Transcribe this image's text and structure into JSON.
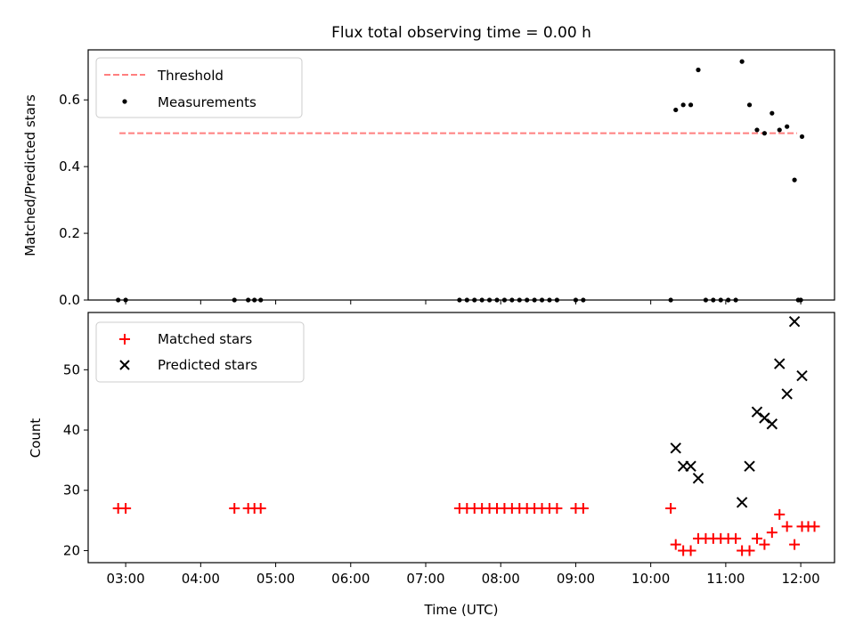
{
  "chart_data": [
    {
      "type": "scatter",
      "title": "Flux total observing time = 0.00 h",
      "xlabel": "",
      "ylabel": "Matched/Predicted stars",
      "xlim": [
        "02:30",
        "12:27"
      ],
      "ylim": [
        0,
        0.75
      ],
      "xticks": [
        "03:00",
        "04:00",
        "05:00",
        "06:00",
        "07:00",
        "08:00",
        "09:00",
        "10:00",
        "11:00",
        "12:00"
      ],
      "yticks": [
        "0.0",
        "0.2",
        "0.4",
        "0.6"
      ],
      "ytick_values": [
        0,
        0.2,
        0.4,
        0.6
      ],
      "show_xtick_labels": false,
      "grid": false,
      "legend_position": "upper left",
      "threshold": {
        "name": "Threshold",
        "value": 0.5,
        "x": [
          "02:55",
          "11:57"
        ],
        "color": "#ff7f7f",
        "style": "dashed"
      },
      "series": [
        {
          "name": "Measurements",
          "color": "#000000",
          "marker": "dot",
          "points": [
            [
              "02:54",
              0
            ],
            [
              "03:00",
              0
            ],
            [
              "04:27",
              0
            ],
            [
              "04:38",
              0
            ],
            [
              "04:43",
              0
            ],
            [
              "04:48",
              0
            ],
            [
              "07:27",
              0
            ],
            [
              "07:33",
              0
            ],
            [
              "07:39",
              0
            ],
            [
              "07:45",
              0
            ],
            [
              "07:51",
              0
            ],
            [
              "07:57",
              0
            ],
            [
              "08:03",
              0
            ],
            [
              "08:09",
              0
            ],
            [
              "08:15",
              0
            ],
            [
              "08:21",
              0
            ],
            [
              "08:27",
              0
            ],
            [
              "08:33",
              0
            ],
            [
              "08:39",
              0
            ],
            [
              "08:45",
              0
            ],
            [
              "09:00",
              0
            ],
            [
              "09:06",
              0
            ],
            [
              "10:16",
              0
            ],
            [
              "10:20",
              0.57
            ],
            [
              "10:26",
              0.585
            ],
            [
              "10:32",
              0.585
            ],
            [
              "10:38",
              0.69
            ],
            [
              "10:44",
              0
            ],
            [
              "10:50",
              0
            ],
            [
              "10:56",
              0
            ],
            [
              "11:02",
              0
            ],
            [
              "11:08",
              0
            ],
            [
              "11:13",
              0.715
            ],
            [
              "11:19",
              0.585
            ],
            [
              "11:25",
              0.51
            ],
            [
              "11:31",
              0.5
            ],
            [
              "11:37",
              0.56
            ],
            [
              "11:43",
              0.51
            ],
            [
              "11:49",
              0.52
            ],
            [
              "11:55",
              0.36
            ],
            [
              "12:01",
              0.49
            ],
            [
              "11:58",
              0
            ],
            [
              "12:00",
              0
            ]
          ]
        }
      ]
    },
    {
      "type": "scatter",
      "title": "",
      "xlabel": "Time (UTC)",
      "ylabel": "Count",
      "xlim": [
        "02:30",
        "12:27"
      ],
      "ylim": [
        18,
        59.5
      ],
      "xticks": [
        "03:00",
        "04:00",
        "05:00",
        "06:00",
        "07:00",
        "08:00",
        "09:00",
        "10:00",
        "11:00",
        "12:00"
      ],
      "yticks": [
        "20",
        "30",
        "40",
        "50"
      ],
      "ytick_values": [
        20,
        30,
        40,
        50
      ],
      "grid": false,
      "legend_position": "upper left",
      "series": [
        {
          "name": "Matched stars",
          "color": "#ff0000",
          "marker": "plus",
          "points": [
            [
              "02:54",
              27
            ],
            [
              "03:00",
              27
            ],
            [
              "04:27",
              27
            ],
            [
              "04:38",
              27
            ],
            [
              "04:43",
              27
            ],
            [
              "04:48",
              27
            ],
            [
              "07:27",
              27
            ],
            [
              "07:33",
              27
            ],
            [
              "07:39",
              27
            ],
            [
              "07:45",
              27
            ],
            [
              "07:51",
              27
            ],
            [
              "07:57",
              27
            ],
            [
              "08:03",
              27
            ],
            [
              "08:09",
              27
            ],
            [
              "08:15",
              27
            ],
            [
              "08:21",
              27
            ],
            [
              "08:27",
              27
            ],
            [
              "08:33",
              27
            ],
            [
              "08:39",
              27
            ],
            [
              "08:45",
              27
            ],
            [
              "09:00",
              27
            ],
            [
              "09:06",
              27
            ],
            [
              "10:16",
              27
            ],
            [
              "10:20",
              21
            ],
            [
              "10:26",
              20
            ],
            [
              "10:32",
              20
            ],
            [
              "10:38",
              22
            ],
            [
              "10:44",
              22
            ],
            [
              "10:50",
              22
            ],
            [
              "10:56",
              22
            ],
            [
              "11:02",
              22
            ],
            [
              "11:08",
              22
            ],
            [
              "11:13",
              20
            ],
            [
              "11:19",
              20
            ],
            [
              "11:25",
              22
            ],
            [
              "11:31",
              21
            ],
            [
              "11:37",
              23
            ],
            [
              "11:43",
              26
            ],
            [
              "11:49",
              24
            ],
            [
              "11:55",
              21
            ],
            [
              "12:01",
              24
            ],
            [
              "12:06",
              24
            ],
            [
              "12:11",
              24
            ]
          ]
        },
        {
          "name": "Predicted stars",
          "color": "#000000",
          "marker": "x",
          "points": [
            [
              "10:20",
              37
            ],
            [
              "10:26",
              34
            ],
            [
              "10:32",
              34
            ],
            [
              "10:38",
              32
            ],
            [
              "11:13",
              28
            ],
            [
              "11:19",
              34
            ],
            [
              "11:25",
              43
            ],
            [
              "11:31",
              42
            ],
            [
              "11:37",
              41
            ],
            [
              "11:43",
              51
            ],
            [
              "11:49",
              46
            ],
            [
              "11:55",
              58
            ],
            [
              "12:01",
              49
            ]
          ]
        }
      ]
    }
  ]
}
